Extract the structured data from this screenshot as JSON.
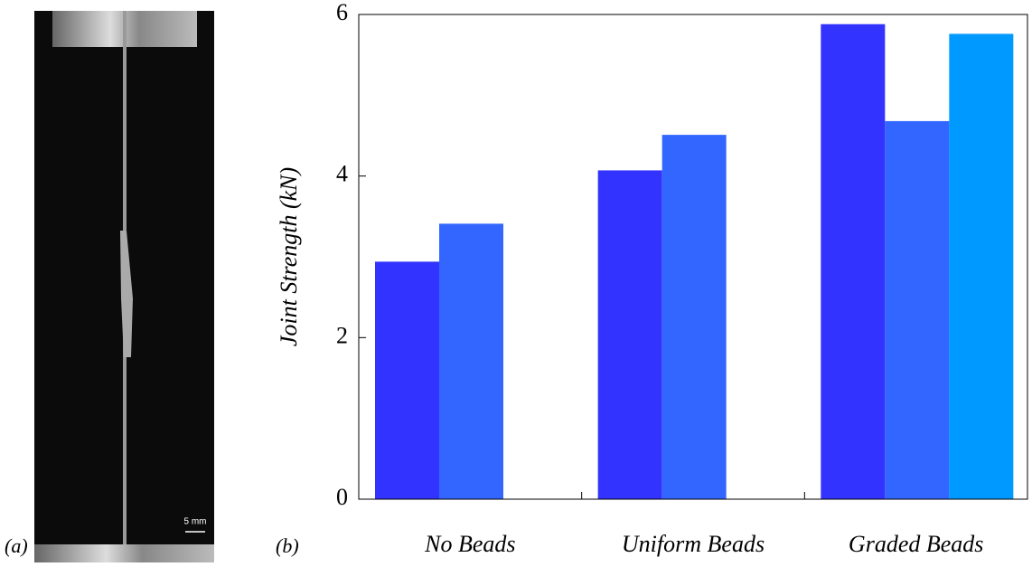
{
  "panels": {
    "a": "(a)",
    "b": "(b)"
  },
  "photo": {
    "scale_label": "5 mm"
  },
  "chart_data": {
    "type": "bar",
    "ylabel": "Joint Strength (kN)",
    "categories": [
      "No Beads",
      "Uniform Beads",
      "Graded Beads"
    ],
    "series": [
      {
        "color": "#3333ff",
        "values": [
          2.94,
          4.07,
          5.88
        ]
      },
      {
        "color": "#3366ff",
        "values": [
          3.41,
          4.51,
          4.68
        ]
      },
      {
        "color": "#0099ff",
        "values": [
          null,
          null,
          5.76
        ]
      }
    ],
    "ylim": [
      0,
      6
    ],
    "yticks": [
      0,
      2,
      4,
      6
    ],
    "grid": false
  }
}
